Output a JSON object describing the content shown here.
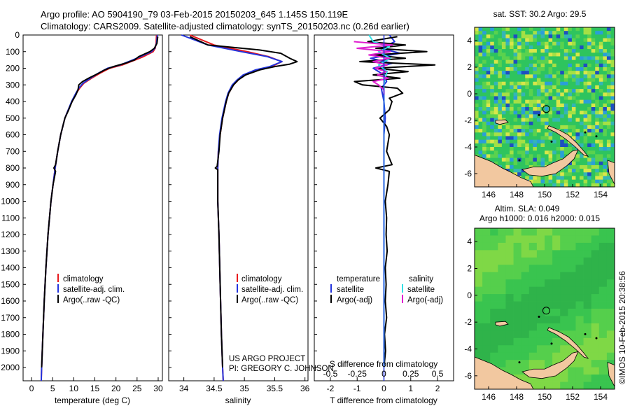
{
  "header": {
    "title_line1": "Argo profile: AO 5904190_79 03-Feb-2015 20150203_645 1.145S 150.119E",
    "title_line2": "Climatology: CARS2009. Satellite-adjusted climatology: synTS_20150203.nc (0.26d earlier)"
  },
  "colors": {
    "climatology": "#e8191c",
    "satellite": "#2233dd",
    "argo": "#000000",
    "sat_cyan": "#33e0e6",
    "argo_magenta": "#e020d0",
    "land": "#f2c8a0",
    "sea_green": "#2ecc5a"
  },
  "depth_axis": {
    "ticks": [
      "0",
      "100",
      "200",
      "300",
      "400",
      "500",
      "600",
      "700",
      "800",
      "900",
      "1000",
      "1100",
      "1200",
      "1300",
      "1400",
      "1500",
      "1600",
      "1700",
      "1800",
      "1900",
      "2000"
    ]
  },
  "chart_data": [
    {
      "id": "temperature",
      "type": "line",
      "xlabel": "temperature (deg C)",
      "xlim": [
        -2,
        31
      ],
      "xticks": [
        0,
        5,
        10,
        15,
        20,
        25,
        30
      ],
      "ylim": [
        0,
        2080
      ],
      "yreversed": true,
      "legend": [
        "climatology",
        "satellite-adj. clim.",
        "Argo(..raw -QC)"
      ],
      "series": [
        {
          "name": "climatology",
          "color_key": "climatology",
          "depth": [
            0,
            50,
            80,
            100,
            130,
            150,
            180,
            200,
            230,
            260,
            290,
            320,
            350,
            400,
            450,
            500,
            600,
            700,
            800,
            900,
            1000,
            1200,
            1400,
            1600,
            1800,
            2000,
            2080
          ],
          "value": [
            29.6,
            29.5,
            29.3,
            28.8,
            26.5,
            24.6,
            21.5,
            18.5,
            16.2,
            14.2,
            12.4,
            11.4,
            10.6,
            9.6,
            8.7,
            7.9,
            6.9,
            6.2,
            5.6,
            5.1,
            4.6,
            3.9,
            3.4,
            3.0,
            2.7,
            2.4,
            2.3
          ]
        },
        {
          "name": "satellite-adj. clim.",
          "color_key": "satellite",
          "depth": [
            0,
            50,
            80,
            100,
            130,
            150,
            180,
            200,
            230,
            260,
            290,
            320,
            350,
            400,
            450,
            500,
            600,
            700,
            800,
            900,
            1000,
            1200,
            1400,
            1600,
            1800,
            2000,
            2080
          ],
          "value": [
            29.8,
            29.6,
            29.2,
            28.4,
            25.8,
            24.0,
            21.0,
            18.0,
            15.8,
            13.9,
            12.2,
            11.2,
            10.5,
            9.5,
            8.7,
            7.9,
            6.9,
            6.2,
            5.6,
            5.1,
            4.6,
            3.9,
            3.4,
            3.0,
            2.7,
            2.4,
            2.3
          ]
        },
        {
          "name": "Argo(..raw -QC)",
          "color_key": "argo",
          "depth": [
            10,
            50,
            80,
            100,
            130,
            150,
            170,
            190,
            210,
            230,
            260,
            280,
            300,
            330,
            360,
            400,
            450,
            500,
            600,
            700,
            780,
            800,
            820,
            900,
            1000,
            1200,
            1400,
            1600,
            1800,
            2000
          ],
          "value": [
            29.9,
            29.7,
            29.1,
            28.0,
            25.4,
            24.4,
            22.2,
            19.4,
            17.3,
            15.9,
            13.5,
            12.1,
            11.2,
            11.0,
            10.5,
            9.6,
            8.8,
            7.9,
            6.9,
            6.2,
            5.7,
            5.3,
            5.7,
            5.1,
            4.6,
            3.9,
            3.4,
            3.0,
            2.7,
            2.4
          ]
        }
      ]
    },
    {
      "id": "salinity",
      "type": "line",
      "xlabel": "salinity",
      "xlim": [
        33.75,
        36.05
      ],
      "xticks": [
        34,
        34.5,
        35,
        35.5,
        36
      ],
      "ylim": [
        0,
        2080
      ],
      "yreversed": true,
      "legend": [
        "climatology",
        "satellite-adj. clim.",
        "Argo(..raw -QC)"
      ],
      "series": [
        {
          "name": "climatology",
          "color_key": "climatology",
          "depth": [
            0,
            60,
            100,
            130,
            160,
            190,
            210,
            240,
            270,
            300,
            350,
            400,
            500,
            600,
            700,
            800,
            1000,
            1200,
            1500,
            1800,
            2000,
            2080
          ],
          "value": [
            34.1,
            34.5,
            35.05,
            35.4,
            35.62,
            35.45,
            35.2,
            35.0,
            34.9,
            34.82,
            34.74,
            34.7,
            34.64,
            34.6,
            34.57,
            34.56,
            34.56,
            34.58,
            34.6,
            34.62,
            34.64,
            34.65
          ]
        },
        {
          "name": "satellite-adj. clim.",
          "color_key": "satellite",
          "depth": [
            0,
            60,
            100,
            130,
            160,
            190,
            210,
            240,
            270,
            300,
            350,
            400,
            500,
            600,
            700,
            800,
            1000,
            1200,
            1500,
            1800,
            2000,
            2080
          ],
          "value": [
            33.96,
            34.4,
            34.95,
            35.38,
            35.62,
            35.42,
            35.18,
            34.98,
            34.88,
            34.8,
            34.73,
            34.69,
            34.63,
            34.59,
            34.57,
            34.56,
            34.56,
            34.58,
            34.6,
            34.62,
            34.64,
            34.65
          ]
        },
        {
          "name": "Argo(..raw -QC)",
          "color_key": "argo",
          "depth": [
            10,
            60,
            90,
            110,
            140,
            160,
            175,
            190,
            210,
            240,
            270,
            300,
            350,
            400,
            450,
            500,
            600,
            700,
            790,
            800,
            810,
            1000,
            1200,
            1500,
            1800,
            2000
          ],
          "value": [
            34.1,
            34.4,
            35.25,
            35.6,
            35.75,
            35.87,
            35.75,
            35.5,
            35.25,
            35.02,
            34.9,
            34.82,
            34.74,
            34.7,
            34.67,
            34.64,
            34.6,
            34.58,
            34.55,
            34.52,
            34.56,
            34.56,
            34.58,
            34.6,
            34.62,
            34.64
          ]
        }
      ]
    },
    {
      "id": "difference",
      "type": "line",
      "xlabel_bottom": "T difference from climatology",
      "xlabel_top": "S difference from climatology",
      "xlim": [
        -2.6,
        2.6
      ],
      "xticks": [
        -2,
        -1,
        0,
        1,
        2
      ],
      "xticks_s": [
        "-0.5",
        "-0.25",
        "0",
        "0.25",
        "0.5"
      ],
      "ylim": [
        0,
        2080
      ],
      "yreversed": true,
      "legend": {
        "temperature_header": "temperature",
        "salinity_header": "salinity",
        "temp_sat": "satellite",
        "temp_argo": "Argo(-adj)",
        "sal_sat": "satellite",
        "sal_argo": "Argo(-adj)"
      },
      "series": [
        {
          "name": "T satellite",
          "color_key": "satellite",
          "depth": [
            0,
            40,
            80,
            110,
            140,
            170,
            200,
            240,
            280,
            320,
            400,
            500,
            600,
            800,
            1000,
            1500,
            2000
          ],
          "value": [
            0.2,
            0.4,
            -0.1,
            0.6,
            -0.5,
            0.3,
            -0.4,
            0.0,
            0.1,
            -0.1,
            0.0,
            0.05,
            0.0,
            0.0,
            0.0,
            0.0,
            0.0
          ]
        },
        {
          "name": "T Argo",
          "color_key": "argo",
          "depth": [
            10,
            40,
            60,
            80,
            100,
            120,
            140,
            160,
            180,
            200,
            220,
            240,
            260,
            280,
            300,
            320,
            350,
            380,
            400,
            450,
            500,
            550,
            600,
            700,
            780,
            800,
            820,
            900,
            1000,
            1100,
            1200,
            1300,
            1400,
            1500,
            1600,
            1700,
            1800,
            1900,
            2000
          ],
          "value": [
            0.5,
            -0.6,
            0.8,
            -0.3,
            1.6,
            -0.4,
            0.8,
            -0.9,
            1.9,
            -0.3,
            0.9,
            -0.4,
            0.6,
            -1.1,
            -0.8,
            0.5,
            0.7,
            0.2,
            0.3,
            0.2,
            -0.15,
            0.1,
            0.2,
            0.1,
            0.3,
            -0.3,
            0.2,
            0.15,
            0.05,
            0.1,
            0.08,
            0.12,
            0.05,
            0.08,
            0.05,
            0.1,
            0.02,
            0.06,
            0.0
          ]
        },
        {
          "name": "S satellite",
          "color_key": "sat_cyan",
          "depth": [
            0,
            40,
            70,
            100,
            140,
            180,
            220,
            260,
            300,
            400,
            500,
            700,
            1000,
            1500,
            2000
          ],
          "value": [
            -0.14,
            -0.1,
            0.05,
            -0.05,
            0.06,
            -0.05,
            0.03,
            0.01,
            0.0,
            0.0,
            0.0,
            0.0,
            0.0,
            0.0,
            0.0
          ]
        },
        {
          "name": "S Argo",
          "color_key": "argo_magenta",
          "depth": [
            40,
            60,
            80,
            100,
            120,
            140,
            160,
            180,
            200,
            220,
            240,
            260,
            280,
            300,
            330,
            360
          ],
          "value": [
            -0.28,
            0.08,
            -0.25,
            0.06,
            -0.14,
            0.05,
            -0.1,
            0.03,
            -0.08,
            0.02,
            -0.06,
            0.04,
            -0.1,
            -0.05,
            0.0,
            0.0
          ]
        }
      ]
    },
    {
      "id": "sst_map",
      "type": "heatmap",
      "title": "sat. SST: 30.2  Argo: 29.5",
      "xlim": [
        145,
        155
      ],
      "ylim": [
        -7,
        5
      ],
      "xticks": [
        "146",
        "148",
        "150",
        "152",
        "154"
      ],
      "yticks": [
        "4",
        "2",
        "0",
        "-2",
        "-4",
        "-6"
      ],
      "marker": {
        "lon": 150.119,
        "lat": -1.145
      }
    },
    {
      "id": "sla_map",
      "type": "heatmap",
      "title_line1": "Altim. SLA: 0.049",
      "title_line2": "Argo h1000: 0.016  h2000: 0.015",
      "xlim": [
        145,
        155
      ],
      "ylim": [
        -7,
        5
      ],
      "xticks": [
        "146",
        "148",
        "150",
        "152",
        "154"
      ],
      "yticks": [
        "4",
        "2",
        "0",
        "-2",
        "-4",
        "-6"
      ],
      "marker": {
        "lon": 150.119,
        "lat": -1.145
      }
    }
  ],
  "notes": {
    "project": "US ARGO PROJECT",
    "pi": "PI: GREGORY C. JOHNSON",
    "credit": "©IMOS 10-Feb-2015 20:38:56"
  }
}
